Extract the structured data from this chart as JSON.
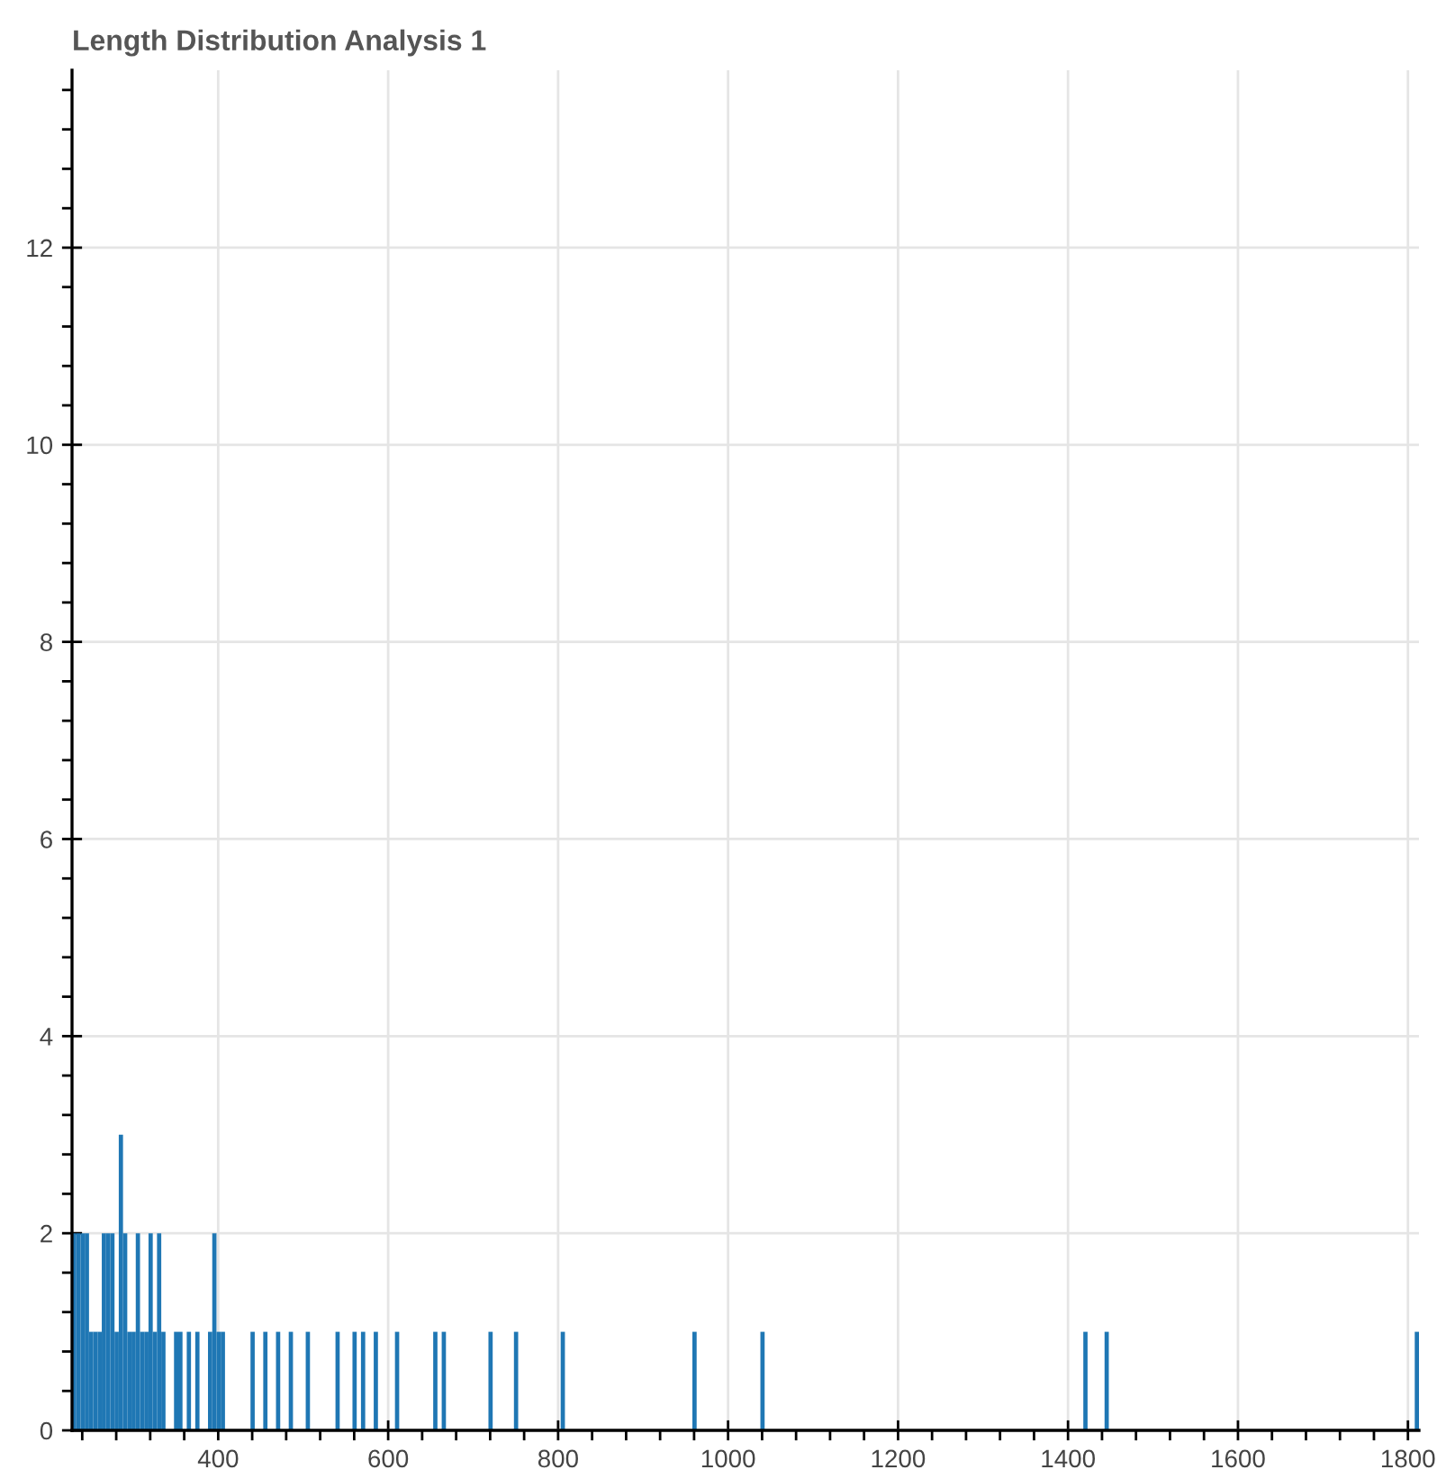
{
  "chart_data": {
    "type": "histogram",
    "title": "Length Distribution Analysis 1",
    "color": "#1f77b4",
    "bins": [
      228,
      233,
      238,
      243,
      248,
      253,
      258,
      263,
      268,
      273,
      278,
      283,
      288,
      293,
      298,
      303,
      308,
      313,
      318,
      323,
      328,
      333,
      338,
      348,
      353,
      358,
      363,
      368,
      373,
      378,
      388,
      393,
      398,
      403,
      408,
      438,
      443,
      453,
      458,
      468,
      473,
      483,
      488,
      503,
      508,
      538,
      543,
      558,
      563,
      568,
      573,
      583,
      588,
      608,
      613,
      653,
      658,
      663,
      668,
      718,
      723,
      748,
      753,
      803,
      808,
      958,
      963,
      1038,
      1043,
      1418,
      1423,
      1443,
      1448,
      1808,
      1813
    ],
    "values": [
      2,
      2,
      2,
      2,
      1,
      1,
      1,
      2,
      2,
      2,
      1,
      3,
      2,
      1,
      1,
      2,
      1,
      1,
      2,
      1,
      2,
      1,
      0,
      1,
      1,
      0,
      1,
      0,
      1,
      0,
      1,
      2,
      1,
      1,
      0,
      1,
      0,
      1,
      0,
      1,
      0,
      1,
      0,
      1,
      0,
      1,
      0,
      1,
      0,
      1,
      0,
      1,
      0,
      1,
      0,
      1,
      0,
      1,
      0,
      1,
      0,
      1,
      0,
      1,
      0,
      1,
      0,
      1,
      0,
      1,
      0,
      1,
      0,
      1
    ],
    "xlim": [
      228,
      1813
    ],
    "xticks": [
      400,
      600,
      800,
      1000,
      1200,
      1400,
      1600,
      1800
    ],
    "ylim": [
      0,
      13.8
    ],
    "yticks": [
      0,
      2,
      4,
      6,
      8,
      10,
      12
    ],
    "grid": true,
    "legend": false
  }
}
